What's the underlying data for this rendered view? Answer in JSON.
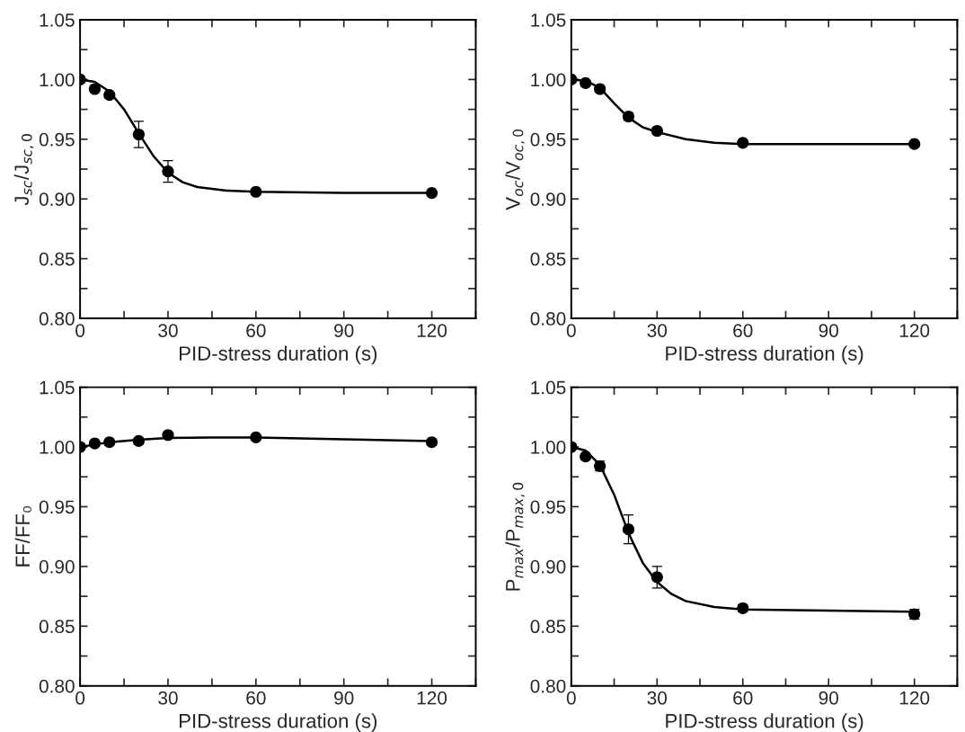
{
  "chart_data": [
    {
      "type": "scatter",
      "xlabel": "PID-stress duration (s)",
      "ylabel": "J$_{sc}$/J$_{sc,0}$",
      "x": [
        0,
        5,
        10,
        20,
        30,
        60,
        120
      ],
      "xlim": [
        0,
        135
      ],
      "ylim": [
        0.8,
        1.05
      ],
      "xticks": [
        0,
        {
          "value": 15,
          "label": null
        },
        30,
        {
          "value": 45,
          "label": null
        },
        60,
        {
          "value": 75,
          "label": null
        },
        90,
        {
          "value": 105,
          "label": null
        },
        120,
        {
          "value": 135,
          "label": null
        }
      ],
      "yticks": [
        {
          "value": 0.8,
          "label": "0.80"
        },
        {
          "value": 0.825,
          "label": null
        },
        {
          "value": 0.85,
          "label": "0.85"
        },
        {
          "value": 0.875,
          "label": null
        },
        {
          "value": 0.9,
          "label": "0.90"
        },
        {
          "value": 0.925,
          "label": null
        },
        {
          "value": 0.95,
          "label": "0.95"
        },
        {
          "value": 0.975,
          "label": null
        },
        {
          "value": 1.0,
          "label": "1.00"
        },
        {
          "value": 1.025,
          "label": null
        },
        {
          "value": 1.05,
          "label": "1.05"
        }
      ],
      "grid": false,
      "line_style": "solid",
      "series": [
        {
          "marker": "circle",
          "color": "#000000",
          "values": [
            1.0,
            0.992,
            0.987,
            0.954,
            0.923,
            0.906,
            0.905
          ],
          "errors": [
            null,
            null,
            0.002,
            0.011,
            0.009,
            null,
            null
          ]
        },
        {
          "type": "line",
          "marker": "none",
          "color": "#000000",
          "x": [
            0,
            5,
            10,
            15,
            20,
            25,
            30,
            35,
            40,
            50,
            60,
            90,
            120
          ],
          "values": [
            1.0,
            0.998,
            0.99,
            0.975,
            0.955,
            0.936,
            0.922,
            0.914,
            0.91,
            0.907,
            0.906,
            0.905,
            0.905
          ]
        }
      ]
    },
    {
      "type": "scatter",
      "xlabel": "PID-stress duration (s)",
      "ylabel": "V$_{oc}$/V$_{oc,0}$",
      "x": [
        0,
        5,
        10,
        20,
        30,
        60,
        120
      ],
      "xlim": [
        0,
        135
      ],
      "ylim": [
        0.8,
        1.05
      ],
      "xticks": [
        0,
        {
          "value": 15,
          "label": null
        },
        30,
        {
          "value": 45,
          "label": null
        },
        60,
        {
          "value": 75,
          "label": null
        },
        90,
        {
          "value": 105,
          "label": null
        },
        120,
        {
          "value": 135,
          "label": null
        }
      ],
      "yticks": [
        {
          "value": 0.8,
          "label": "0.80"
        },
        {
          "value": 0.825,
          "label": null
        },
        {
          "value": 0.85,
          "label": "0.85"
        },
        {
          "value": 0.875,
          "label": null
        },
        {
          "value": 0.9,
          "label": "0.90"
        },
        {
          "value": 0.925,
          "label": null
        },
        {
          "value": 0.95,
          "label": "0.95"
        },
        {
          "value": 0.975,
          "label": null
        },
        {
          "value": 1.0,
          "label": "1.00"
        },
        {
          "value": 1.025,
          "label": null
        },
        {
          "value": 1.05,
          "label": "1.05"
        }
      ],
      "grid": false,
      "line_style": "solid",
      "series": [
        {
          "marker": "circle",
          "color": "#000000",
          "values": [
            1.0,
            0.997,
            0.992,
            0.969,
            0.957,
            0.947,
            0.946
          ],
          "errors": [
            null,
            null,
            0.002,
            0.003,
            0.002,
            null,
            null
          ]
        },
        {
          "type": "line",
          "marker": "none",
          "color": "#000000",
          "x": [
            0,
            5,
            10,
            15,
            20,
            25,
            30,
            40,
            50,
            60,
            90,
            120
          ],
          "values": [
            1.0,
            0.999,
            0.993,
            0.98,
            0.968,
            0.96,
            0.956,
            0.95,
            0.947,
            0.946,
            0.946,
            0.946
          ]
        }
      ]
    },
    {
      "type": "scatter",
      "xlabel": "PID-stress duration (s)",
      "ylabel": "FF/FF₀",
      "x": [
        0,
        5,
        10,
        20,
        30,
        60,
        120
      ],
      "xlim": [
        0,
        135
      ],
      "ylim": [
        0.8,
        1.05
      ],
      "xticks": [
        0,
        {
          "value": 15,
          "label": null
        },
        30,
        {
          "value": 45,
          "label": null
        },
        60,
        {
          "value": 75,
          "label": null
        },
        90,
        {
          "value": 105,
          "label": null
        },
        120,
        {
          "value": 135,
          "label": null
        }
      ],
      "yticks": [
        {
          "value": 0.8,
          "label": "0.80"
        },
        {
          "value": 0.825,
          "label": null
        },
        {
          "value": 0.85,
          "label": "0.85"
        },
        {
          "value": 0.875,
          "label": null
        },
        {
          "value": 0.9,
          "label": "0.90"
        },
        {
          "value": 0.925,
          "label": null
        },
        {
          "value": 0.95,
          "label": "0.95"
        },
        {
          "value": 0.975,
          "label": null
        },
        {
          "value": 1.0,
          "label": "1.00"
        },
        {
          "value": 1.025,
          "label": null
        },
        {
          "value": 1.05,
          "label": "1.05"
        }
      ],
      "grid": false,
      "line_style": "solid",
      "series": [
        {
          "marker": "circle",
          "color": "#000000",
          "values": [
            1.0,
            1.003,
            1.004,
            1.005,
            1.01,
            1.008,
            1.004
          ],
          "errors": [
            null,
            0.002,
            null,
            0.002,
            null,
            null,
            null
          ]
        },
        {
          "type": "line",
          "marker": "none",
          "color": "#000000",
          "x": [
            0,
            5,
            10,
            20,
            30,
            45,
            60,
            90,
            120
          ],
          "values": [
            1.0,
            1.002,
            1.004,
            1.006,
            1.0075,
            1.008,
            1.008,
            1.0065,
            1.005
          ]
        }
      ]
    },
    {
      "type": "scatter",
      "xlabel": "PID-stress duration (s)",
      "ylabel": "P$_{max}$/P$_{max,0}$",
      "x": [
        0,
        5,
        10,
        20,
        30,
        60,
        120
      ],
      "xlim": [
        0,
        135
      ],
      "ylim": [
        0.8,
        1.05
      ],
      "xticks": [
        0,
        {
          "value": 15,
          "label": null
        },
        30,
        {
          "value": 45,
          "label": null
        },
        60,
        {
          "value": 75,
          "label": null
        },
        90,
        {
          "value": 105,
          "label": null
        },
        120,
        {
          "value": 135,
          "label": null
        }
      ],
      "yticks": [
        {
          "value": 0.8,
          "label": "0.80"
        },
        {
          "value": 0.825,
          "label": null
        },
        {
          "value": 0.85,
          "label": "0.85"
        },
        {
          "value": 0.875,
          "label": null
        },
        {
          "value": 0.9,
          "label": "0.90"
        },
        {
          "value": 0.925,
          "label": null
        },
        {
          "value": 0.95,
          "label": "0.95"
        },
        {
          "value": 0.975,
          "label": null
        },
        {
          "value": 1.0,
          "label": "1.00"
        },
        {
          "value": 1.025,
          "label": null
        },
        {
          "value": 1.05,
          "label": "1.05"
        }
      ],
      "grid": false,
      "line_style": "solid",
      "series": [
        {
          "marker": "circle",
          "color": "#000000",
          "values": [
            1.0,
            0.992,
            0.984,
            0.931,
            0.891,
            0.865,
            0.86
          ],
          "errors": [
            null,
            null,
            0.004,
            0.012,
            0.009,
            0.003,
            0.004
          ]
        },
        {
          "type": "line",
          "marker": "none",
          "color": "#000000",
          "x": [
            0,
            5,
            10,
            15,
            20,
            25,
            30,
            35,
            40,
            50,
            60,
            90,
            120
          ],
          "values": [
            1.0,
            0.997,
            0.985,
            0.96,
            0.928,
            0.903,
            0.887,
            0.877,
            0.871,
            0.866,
            0.864,
            0.863,
            0.862
          ]
        }
      ]
    }
  ]
}
